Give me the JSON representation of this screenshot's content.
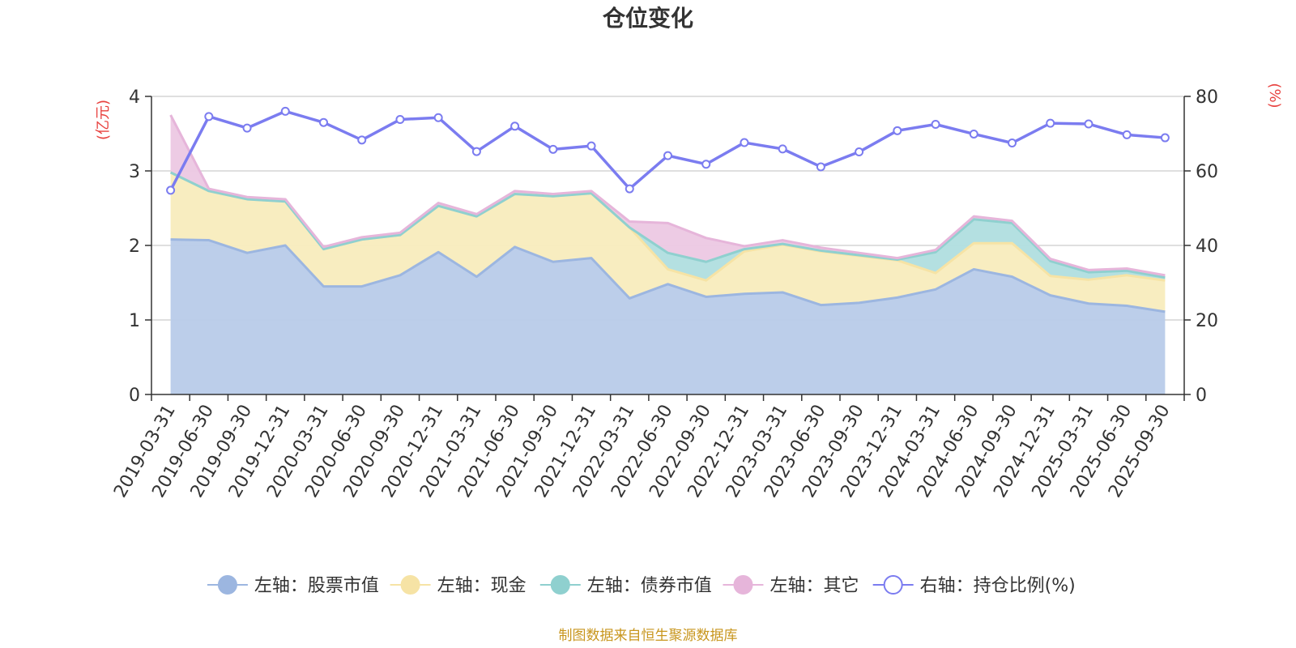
{
  "chart_data": {
    "type": "area",
    "title": "仓位变化",
    "left_axis_unit": "(亿元)",
    "right_axis_unit": "(%)",
    "ylim_left": [
      0,
      4
    ],
    "yticks_left": [
      "0",
      "1",
      "2",
      "3",
      "4"
    ],
    "ylim_right": [
      0,
      80
    ],
    "yticks_right": [
      "0",
      "20",
      "40",
      "60",
      "80"
    ],
    "grid": true,
    "legend_position": "bottom",
    "categories": [
      "2019-03-31",
      "2019-06-30",
      "2019-09-30",
      "2019-12-31",
      "2020-03-31",
      "2020-06-30",
      "2020-09-30",
      "2020-12-31",
      "2021-03-31",
      "2021-06-30",
      "2021-09-30",
      "2021-12-31",
      "2022-03-31",
      "2022-06-30",
      "2022-09-30",
      "2022-12-31",
      "2023-03-31",
      "2023-06-30",
      "2023-09-30",
      "2023-12-31",
      "2024-03-31",
      "2024-06-30",
      "2024-09-30",
      "2024-12-31",
      "2025-03-31",
      "2025-06-30",
      "2025-09-30"
    ],
    "stacked_series": [
      {
        "name": "左轴：股票市值",
        "color": "#9cb6e0",
        "fill": "#b8cbe9",
        "values": [
          2.08,
          2.07,
          1.9,
          2.0,
          1.45,
          1.45,
          1.6,
          1.91,
          1.58,
          1.98,
          1.78,
          1.83,
          1.29,
          1.48,
          1.31,
          1.35,
          1.37,
          1.2,
          1.23,
          1.3,
          1.41,
          1.68,
          1.58,
          1.33,
          1.22,
          1.19,
          1.11
        ]
      },
      {
        "name": "左轴：现金",
        "color": "#f6e3a5",
        "fill": "#f8ecbd",
        "values": [
          0.9,
          0.66,
          0.72,
          0.59,
          0.5,
          0.63,
          0.54,
          0.62,
          0.81,
          0.71,
          0.88,
          0.87,
          0.95,
          0.2,
          0.22,
          0.57,
          0.64,
          0.72,
          0.63,
          0.5,
          0.22,
          0.35,
          0.45,
          0.26,
          0.32,
          0.41,
          0.42
        ]
      },
      {
        "name": "左轴：债券市值",
        "color": "#8fd0cf",
        "fill": "#b0dedf",
        "values": [
          0,
          0,
          0,
          0,
          0,
          0,
          0,
          0,
          0,
          0,
          0,
          0,
          0,
          0.22,
          0.25,
          0.03,
          0.01,
          0.01,
          0.01,
          0.01,
          0.28,
          0.32,
          0.27,
          0.2,
          0.1,
          0.06,
          0.04
        ]
      },
      {
        "name": "左轴：其它",
        "color": "#e6b5da",
        "fill": "#ecc8e3",
        "values": [
          0.77,
          0.03,
          0.03,
          0.03,
          0.03,
          0.03,
          0.03,
          0.04,
          0.03,
          0.04,
          0.03,
          0.03,
          0.08,
          0.4,
          0.32,
          0.04,
          0.05,
          0.04,
          0.03,
          0.02,
          0.03,
          0.04,
          0.03,
          0.03,
          0.03,
          0.03,
          0.03
        ]
      }
    ],
    "line_series": {
      "name": "右轴：持仓比例(%)",
      "color": "#7b7cf0",
      "values": [
        54.8,
        74.6,
        71.5,
        76.0,
        73.0,
        68.3,
        73.8,
        74.3,
        65.2,
        72.0,
        65.8,
        66.7,
        55.2,
        64.1,
        61.8,
        67.6,
        65.9,
        61.1,
        65.1,
        70.8,
        72.5,
        69.9,
        67.5,
        72.8,
        72.6,
        69.7,
        68.9
      ]
    }
  },
  "source_text": "制图数据来自恒生聚源数据库",
  "colors": {
    "axis_unit": "#e8423f",
    "source": "#c8961e",
    "axis": "#333333",
    "grid": "#cccccc"
  }
}
